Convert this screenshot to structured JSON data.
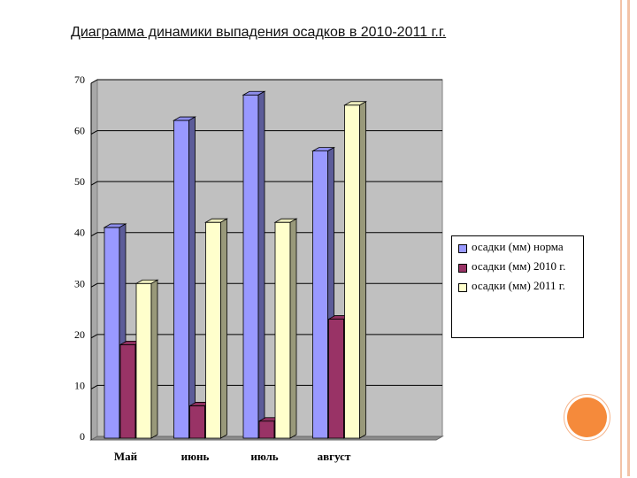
{
  "slide": {
    "title": "Диаграмма динамики выпадения осадков в 2010-2011 г.г.",
    "accent_color": "#f58a3b",
    "frame_color": "#f3c3a7"
  },
  "chart_data": {
    "type": "bar",
    "title": "",
    "xlabel": "",
    "ylabel": "",
    "categories": [
      "Май",
      "июнь",
      "июль",
      "август"
    ],
    "ylim": [
      0,
      70
    ],
    "yticks": [
      0,
      10,
      20,
      30,
      40,
      50,
      60,
      70
    ],
    "grid": true,
    "legend_position": "right",
    "series": [
      {
        "name": "осадки (мм) норма",
        "values": [
          41,
          62,
          67,
          56
        ],
        "color": "#9999ff"
      },
      {
        "name": "осадки (мм) 2010 г.",
        "values": [
          18,
          6,
          3,
          23
        ],
        "color": "#993366"
      },
      {
        "name": "осадки (мм) 2011 г.",
        "values": [
          30,
          42,
          42,
          65
        ],
        "color": "#ffffcc"
      }
    ]
  }
}
